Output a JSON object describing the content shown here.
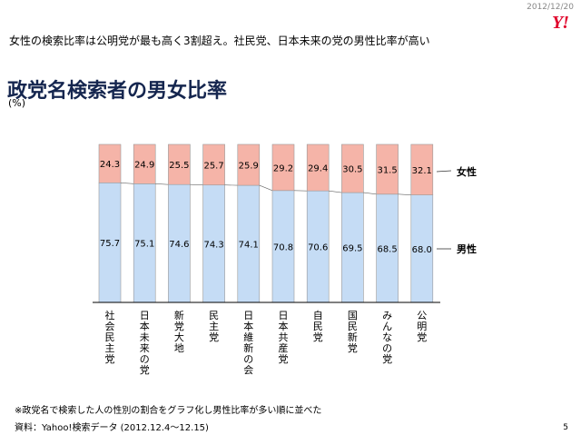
{
  "header": {
    "date": "2012/12/20",
    "logo": "Y!",
    "headline": "女性の検索比率は公明党が最も高く3割超え。社民党、日本未来の党の男性比率が高い",
    "page_number": "5"
  },
  "chart_data": {
    "type": "bar",
    "stacked": true,
    "title": "政党名検索者の男女比率",
    "unit": "(%)",
    "categories": [
      "社会民主党",
      "日本未来の党",
      "新党大地",
      "民主党",
      "日本維新の会",
      "日本共産党",
      "自民党",
      "国民新党",
      "みんなの党",
      "公明党"
    ],
    "series": [
      {
        "name": "男性",
        "color": "#c5dcf5",
        "values": [
          75.7,
          75.1,
          74.6,
          74.3,
          74.1,
          70.8,
          70.6,
          69.5,
          68.5,
          68.0
        ]
      },
      {
        "name": "女性",
        "color": "#f5b4a8",
        "values": [
          24.3,
          24.9,
          25.5,
          25.7,
          25.9,
          29.2,
          29.4,
          30.5,
          31.5,
          32.1
        ]
      }
    ],
    "ylim": [
      0,
      100
    ],
    "legend": "right"
  },
  "footer": {
    "note": "※政党名で検索した人の性別の割合をグラフ化し男性比率が多い順に並べた",
    "source": "資料：Yahoo!検索データ (2012.12.4～12.15)"
  }
}
